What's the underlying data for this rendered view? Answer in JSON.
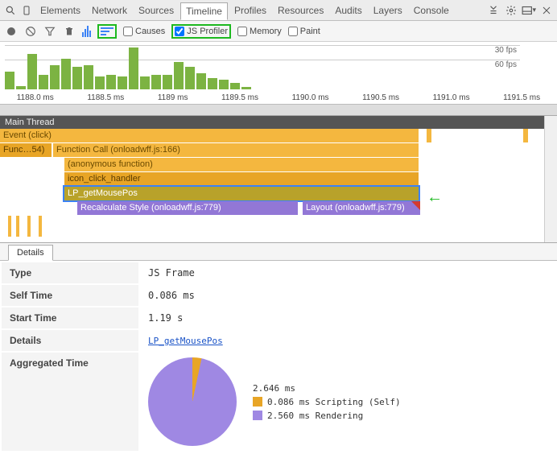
{
  "tabs": [
    "Elements",
    "Network",
    "Sources",
    "Timeline",
    "Profiles",
    "Resources",
    "Audits",
    "Layers",
    "Console"
  ],
  "active_tab": "Timeline",
  "toolbar": {
    "checkboxes": {
      "causes": {
        "label": "Causes",
        "checked": false
      },
      "js_profiler": {
        "label": "JS Profiler",
        "checked": true
      },
      "memory": {
        "label": "Memory",
        "checked": false
      },
      "paint": {
        "label": "Paint",
        "checked": false
      }
    }
  },
  "chart": {
    "type": "bar",
    "bar_color": "#7cb342",
    "bg": "#ffffff",
    "heights": [
      22,
      4,
      44,
      18,
      30,
      38,
      28,
      30,
      16,
      18,
      16,
      52,
      16,
      18,
      18,
      34,
      28,
      20,
      14,
      12,
      8,
      3
    ],
    "fps30": "30 fps",
    "fps60": "60 fps",
    "ticks": [
      "1188.0 ms",
      "1188.5 ms",
      "1189 ms",
      "1189.5 ms",
      "1190.0 ms",
      "1190.5 ms",
      "1191.0 ms",
      "1191.5 ms"
    ]
  },
  "flame": {
    "main": "Main Thread",
    "event": "Event (click)",
    "fn54": "Func…54)",
    "fncall": "Function Call (onloadwff.js:166)",
    "anon": "(anonymous function)",
    "iconh": "icon_click_handler",
    "getm": "LP_getMousePos",
    "recalc": "Recalculate Style (onloadwff.js:779)",
    "layout": "Layout (onloadwff.js:779)",
    "colors": {
      "event": "#f4b73f",
      "fn": "#e8a526",
      "sel": "#b8a22a",
      "layout": "#9277d6",
      "warn": "#d43b2e"
    }
  },
  "details": {
    "tab": "Details",
    "rows": {
      "type": {
        "k": "Type",
        "v": "JS Frame"
      },
      "self_time": {
        "k": "Self Time",
        "v": "0.086 ms"
      },
      "start_time": {
        "k": "Start Time",
        "v": "1.19 s"
      },
      "details": {
        "k": "Details",
        "v": "LP_getMousePos"
      },
      "agg": {
        "k": "Aggregated Time"
      }
    },
    "pie": {
      "total": "2.646 ms",
      "scripting": {
        "label": "0.086 ms Scripting (Self)",
        "color": "#e8a526"
      },
      "rendering": {
        "label": "2.560 ms Rendering",
        "color": "#9f88e3"
      }
    }
  }
}
